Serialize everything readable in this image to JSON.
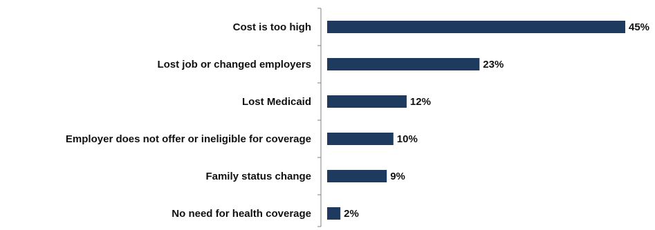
{
  "chart_data": {
    "type": "bar",
    "orientation": "horizontal",
    "categories": [
      "Cost is too high",
      "Lost job or changed employers",
      "Lost Medicaid",
      "Employer does not offer or ineligible for coverage",
      "Family status change",
      "No need for health coverage"
    ],
    "values": [
      45,
      23,
      12,
      10,
      9,
      2
    ],
    "value_labels": [
      "45%",
      "23%",
      "12%",
      "10%",
      "9%",
      "2%"
    ],
    "xlim": [
      0,
      45
    ],
    "grid": false,
    "legend": "none",
    "bar_color": "#1f3a5f",
    "axis_color": "#7f7f7f",
    "title": "",
    "xlabel": "",
    "ylabel": ""
  }
}
